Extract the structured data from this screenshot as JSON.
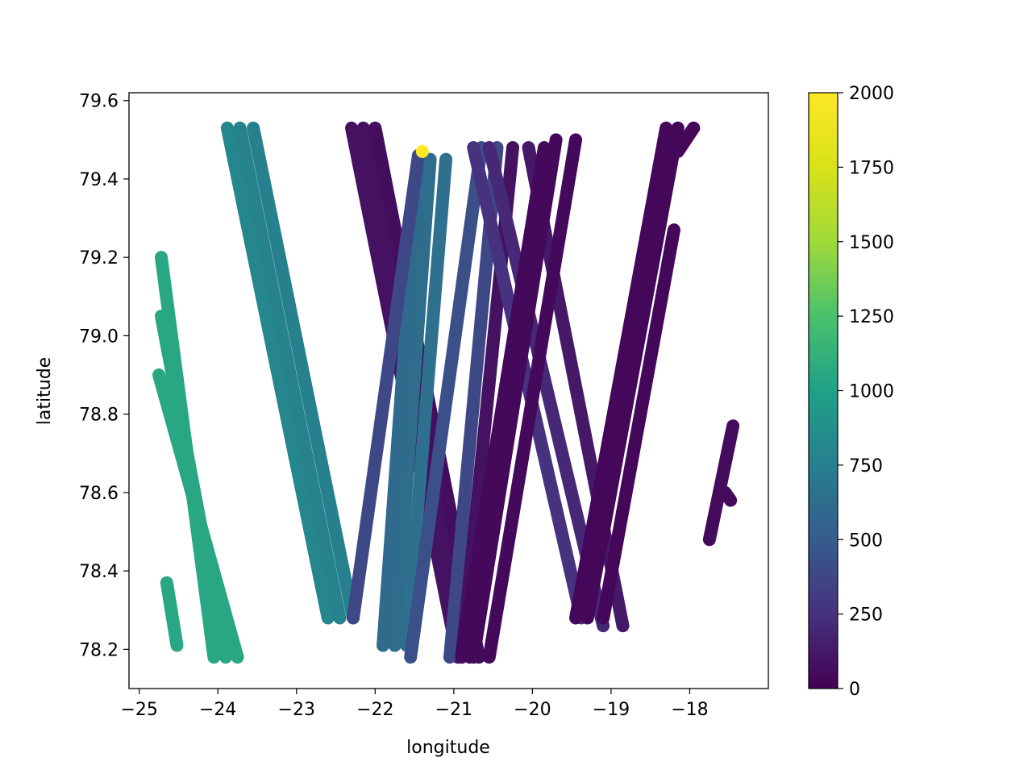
{
  "chart_data": {
    "type": "scatter",
    "title": "",
    "xlabel": "longitude",
    "ylabel": "latitude",
    "xlim": [
      -25.13,
      -17.0
    ],
    "ylim": [
      78.1,
      79.62
    ],
    "xticks": [
      {
        "value": -25,
        "label": "−25"
      },
      {
        "value": -24,
        "label": "−24"
      },
      {
        "value": -23,
        "label": "−23"
      },
      {
        "value": -22,
        "label": "−22"
      },
      {
        "value": -21,
        "label": "−21"
      },
      {
        "value": -20,
        "label": "−20"
      },
      {
        "value": -19,
        "label": "−19"
      },
      {
        "value": -18,
        "label": "−18"
      }
    ],
    "yticks": [
      {
        "value": 78.2,
        "label": "78.2"
      },
      {
        "value": 78.4,
        "label": "78.4"
      },
      {
        "value": 78.6,
        "label": "78.6"
      },
      {
        "value": 78.8,
        "label": "78.8"
      },
      {
        "value": 79.0,
        "label": "79.0"
      },
      {
        "value": 79.2,
        "label": "79.2"
      },
      {
        "value": 79.4,
        "label": "79.4"
      },
      {
        "value": 79.6,
        "label": "79.6"
      }
    ],
    "grid": false,
    "colorbar": {
      "colormap": "viridis",
      "range": [
        0,
        2000
      ],
      "ticks": [
        {
          "value": 0,
          "label": "0"
        },
        {
          "value": 250,
          "label": "250"
        },
        {
          "value": 500,
          "label": "500"
        },
        {
          "value": 750,
          "label": "750"
        },
        {
          "value": 1000,
          "label": "1000"
        },
        {
          "value": 1250,
          "label": "1250"
        },
        {
          "value": 1500,
          "label": "1500"
        },
        {
          "value": 1750,
          "label": "1750"
        },
        {
          "value": 2000,
          "label": "2000"
        }
      ]
    },
    "tracks": [
      {
        "start": [
          -24.72,
          79.2
        ],
        "end": [
          -24.05,
          78.18
        ],
        "value": 1050
      },
      {
        "start": [
          -24.72,
          79.05
        ],
        "end": [
          -23.9,
          78.18
        ],
        "value": 1050
      },
      {
        "start": [
          -24.75,
          78.9
        ],
        "end": [
          -23.75,
          78.18
        ],
        "value": 1050
      },
      {
        "start": [
          -24.65,
          78.37
        ],
        "end": [
          -24.52,
          78.21
        ],
        "value": 1050
      },
      {
        "start": [
          -23.88,
          79.53
        ],
        "end": [
          -22.6,
          78.28
        ],
        "value": 800
      },
      {
        "start": [
          -23.72,
          79.53
        ],
        "end": [
          -22.45,
          78.28
        ],
        "value": 780
      },
      {
        "start": [
          -23.55,
          79.53
        ],
        "end": [
          -22.28,
          78.28
        ],
        "value": 760
      },
      {
        "start": [
          -22.3,
          79.53
        ],
        "end": [
          -20.95,
          78.18
        ],
        "value": 80
      },
      {
        "start": [
          -22.15,
          79.53
        ],
        "end": [
          -20.8,
          78.18
        ],
        "value": 80
      },
      {
        "start": [
          -22.0,
          79.53
        ],
        "end": [
          -20.68,
          78.18
        ],
        "value": 60
      },
      {
        "start": [
          -21.45,
          79.46
        ],
        "end": [
          -21.9,
          78.21
        ],
        "value": 600
      },
      {
        "start": [
          -21.3,
          79.45
        ],
        "end": [
          -21.75,
          78.21
        ],
        "value": 620
      },
      {
        "start": [
          -21.1,
          79.45
        ],
        "end": [
          -21.6,
          78.21
        ],
        "value": 640
      },
      {
        "start": [
          -21.45,
          79.46
        ],
        "end": [
          -22.28,
          78.28
        ],
        "value": 380
      },
      {
        "start": [
          -20.65,
          79.48
        ],
        "end": [
          -21.55,
          78.18
        ],
        "value": 420
      },
      {
        "start": [
          -20.45,
          79.48
        ],
        "end": [
          -21.05,
          78.18
        ],
        "value": 380
      },
      {
        "start": [
          -20.25,
          79.48
        ],
        "end": [
          -20.9,
          78.18
        ],
        "value": 80
      },
      {
        "start": [
          -20.75,
          79.48
        ],
        "end": [
          -19.38,
          78.28
        ],
        "value": 250
      },
      {
        "start": [
          -20.55,
          79.48
        ],
        "end": [
          -19.1,
          78.26
        ],
        "value": 200
      },
      {
        "start": [
          -20.05,
          79.48
        ],
        "end": [
          -18.85,
          78.26
        ],
        "value": 120
      },
      {
        "start": [
          -19.85,
          79.48
        ],
        "end": [
          -20.9,
          78.18
        ],
        "value": 40
      },
      {
        "start": [
          -19.7,
          79.5
        ],
        "end": [
          -20.75,
          78.18
        ],
        "value": 40
      },
      {
        "start": [
          -19.45,
          79.5
        ],
        "end": [
          -20.55,
          78.18
        ],
        "value": 40
      },
      {
        "start": [
          -18.3,
          79.53
        ],
        "end": [
          -19.45,
          78.28
        ],
        "value": 30
      },
      {
        "start": [
          -18.15,
          79.53
        ],
        "end": [
          -19.3,
          78.28
        ],
        "value": 30
      },
      {
        "start": [
          -18.2,
          79.27
        ],
        "end": [
          -19.1,
          78.28
        ],
        "value": 30
      },
      {
        "start": [
          -17.95,
          79.53
        ],
        "end": [
          -18.15,
          79.47
        ],
        "value": 30
      },
      {
        "start": [
          -17.45,
          78.77
        ],
        "end": [
          -17.75,
          78.48
        ],
        "value": 50
      },
      {
        "start": [
          -17.55,
          78.6
        ],
        "end": [
          -17.48,
          78.58
        ],
        "value": 50
      }
    ],
    "highlights": [
      {
        "lon": -21.4,
        "lat": 79.47,
        "value": 2000
      }
    ]
  }
}
